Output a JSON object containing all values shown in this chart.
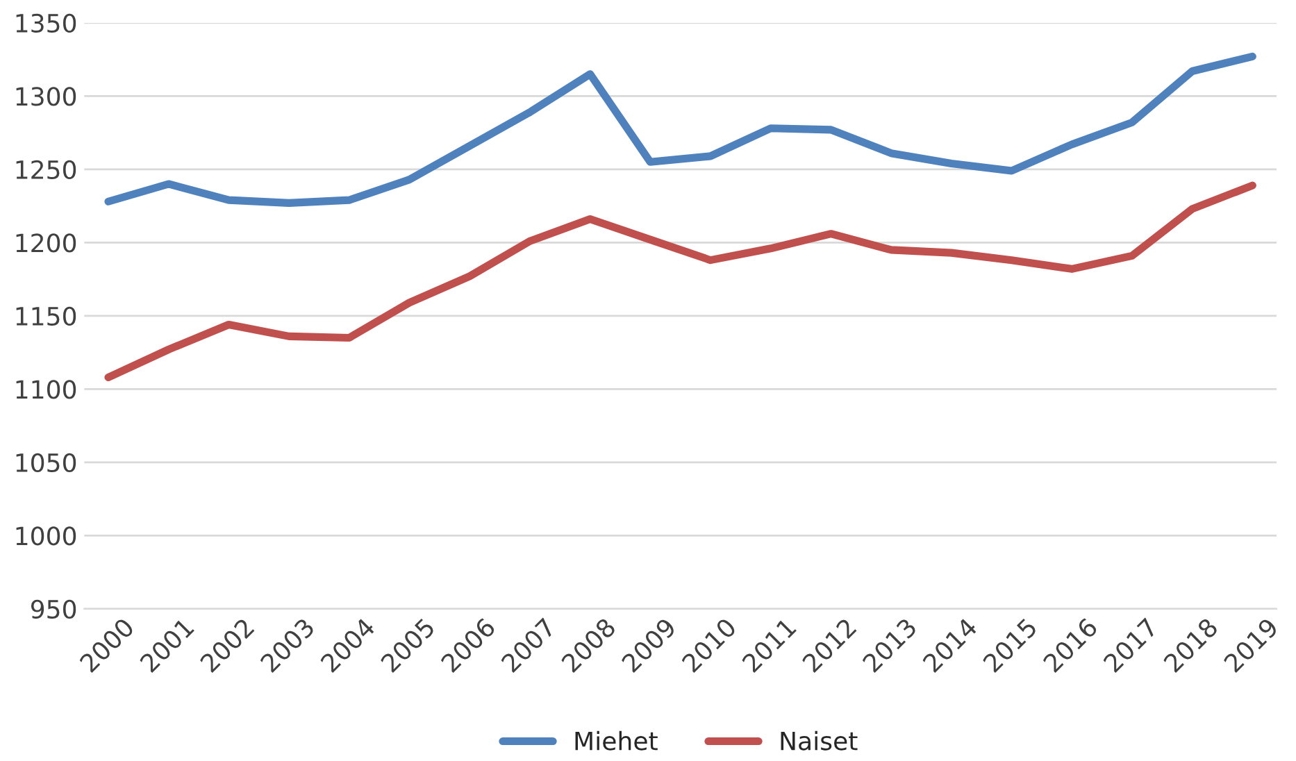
{
  "chart_data": {
    "type": "line",
    "categories": [
      "2000",
      "2001",
      "2002",
      "2003",
      "2004",
      "2005",
      "2006",
      "2007",
      "2008",
      "2009",
      "2010",
      "2011",
      "2012",
      "2013",
      "2014",
      "2015",
      "2016",
      "2017",
      "2018",
      "2019"
    ],
    "series": [
      {
        "name": "Miehet",
        "color": "#4f81bd",
        "values": [
          1228,
          1240,
          1229,
          1227,
          1229,
          1243,
          1266,
          1289,
          1315,
          1255,
          1259,
          1278,
          1277,
          1261,
          1254,
          1249,
          1267,
          1282,
          1317,
          1327
        ]
      },
      {
        "name": "Naiset",
        "color": "#c0504d",
        "values": [
          1108,
          1127,
          1144,
          1136,
          1135,
          1159,
          1177,
          1201,
          1216,
          1202,
          1188,
          1196,
          1206,
          1195,
          1193,
          1188,
          1182,
          1191,
          1223,
          1239
        ]
      }
    ],
    "ylim": [
      950,
      1350
    ],
    "yticks": [
      950,
      1000,
      1050,
      1100,
      1150,
      1200,
      1250,
      1300,
      1350
    ],
    "grid": "y",
    "legend": "bottom",
    "marker": "none",
    "line_style": "solid"
  }
}
